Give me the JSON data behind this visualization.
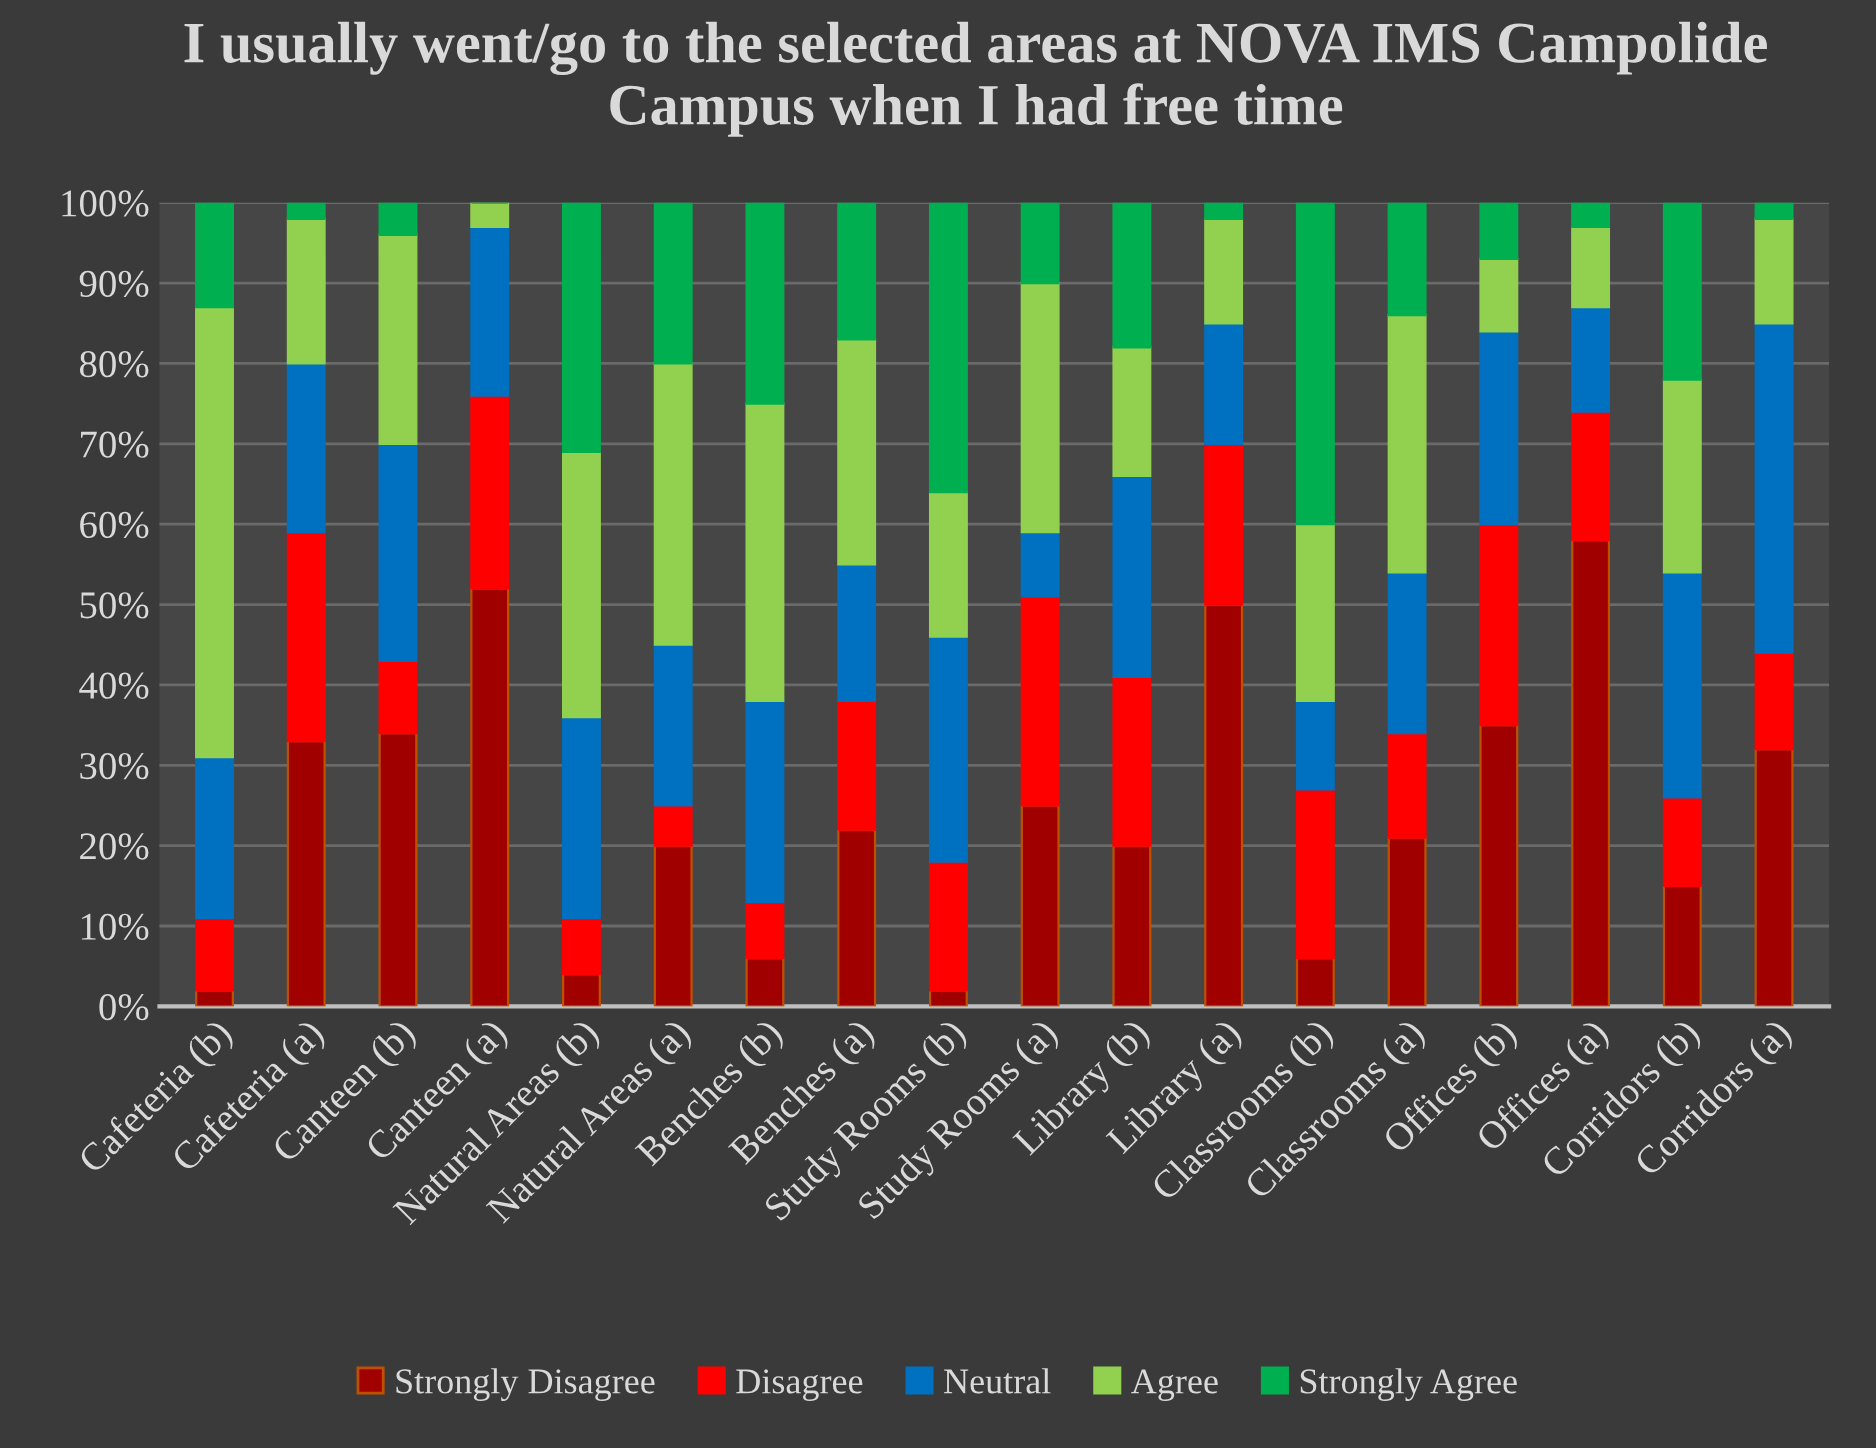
{
  "chart_data": {
    "type": "bar",
    "stacked": true,
    "title": "I usually went/go to the selected areas at NOVA IMS Campolide Campus when I had free time",
    "categories": [
      "Cafeteria (b)",
      "Cafeteria (a)",
      "Canteen (b)",
      "Canteen (a)",
      "Natural Areas (b)",
      "Natural Areas (a)",
      "Benches (b)",
      "Benches (a)",
      "Study Rooms (b)",
      "Study Rooms (a)",
      "Library (b)",
      "Library (a)",
      "Classrooms (b)",
      "Classrooms (a)",
      "Offices (b)",
      "Offices (a)",
      "Corridors (b)",
      "Corridors (a)"
    ],
    "series": [
      {
        "name": "Strongly Disagree",
        "color": "#a00000",
        "values": [
          2,
          33,
          34,
          52,
          4,
          20,
          6,
          22,
          2,
          25,
          20,
          50,
          6,
          21,
          35,
          58,
          15,
          32
        ]
      },
      {
        "name": "Disagree",
        "color": "#ff0000",
        "values": [
          9,
          26,
          9,
          24,
          7,
          5,
          7,
          16,
          16,
          26,
          21,
          20,
          21,
          13,
          25,
          16,
          11,
          12
        ]
      },
      {
        "name": "Neutral",
        "color": "#0070c0",
        "values": [
          20,
          21,
          27,
          21,
          25,
          20,
          25,
          17,
          28,
          8,
          25,
          15,
          11,
          20,
          24,
          13,
          28,
          41
        ]
      },
      {
        "name": "Agree",
        "color": "#92d050",
        "values": [
          56,
          18,
          26,
          3,
          33,
          35,
          37,
          28,
          18,
          31,
          16,
          13,
          22,
          32,
          9,
          10,
          24,
          13
        ]
      },
      {
        "name": "Strongly Agree",
        "color": "#00b050",
        "values": [
          13,
          2,
          4,
          0,
          31,
          20,
          25,
          17,
          36,
          10,
          18,
          2,
          40,
          14,
          7,
          3,
          22,
          2
        ]
      }
    ],
    "ylim": [
      0,
      100
    ],
    "yticks": [
      {
        "value": 0,
        "label": "0%"
      },
      {
        "value": 10,
        "label": "10%"
      },
      {
        "value": 20,
        "label": "20%"
      },
      {
        "value": 30,
        "label": "30%"
      },
      {
        "value": 40,
        "label": "40%"
      },
      {
        "value": 50,
        "label": "50%"
      },
      {
        "value": 60,
        "label": "60%"
      },
      {
        "value": 70,
        "label": "70%"
      },
      {
        "value": 80,
        "label": "80%"
      },
      {
        "value": 90,
        "label": "90%"
      },
      {
        "value": 100,
        "label": "100%"
      }
    ],
    "grid": "y",
    "legend": "bottom"
  }
}
